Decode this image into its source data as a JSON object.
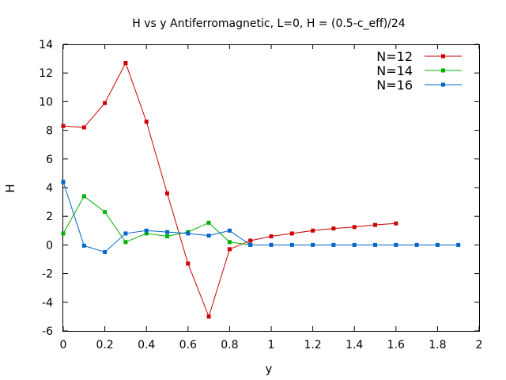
{
  "chart_data": {
    "type": "line",
    "title": "H vs y Antiferromagnetic, L=0, H = (0.5-c_eff)/24",
    "xlabel": "y",
    "ylabel": "H",
    "xlim": [
      0,
      2
    ],
    "ylim": [
      -6,
      14
    ],
    "x_ticks": [
      "0",
      "0.2",
      "0.4",
      "0.6",
      "0.8",
      "1",
      "1.2",
      "1.4",
      "1.6",
      "1.8",
      "2"
    ],
    "y_ticks": [
      "-6",
      "-4",
      "-2",
      "0",
      "2",
      "4",
      "6",
      "8",
      "10",
      "12",
      "14"
    ],
    "grid": false,
    "legend_position": "top-right",
    "series": [
      {
        "name": "N=12",
        "color": "#cc0000",
        "x": [
          0,
          0.1,
          0.2,
          0.3,
          0.4,
          0.5,
          0.6,
          0.7,
          0.8,
          0.9,
          1.0,
          1.1,
          1.2,
          1.3,
          1.4,
          1.5,
          1.6
        ],
        "y": [
          8.3,
          8.2,
          9.9,
          12.7,
          8.6,
          3.6,
          -1.3,
          -5.0,
          -0.3,
          0.3,
          0.6,
          0.8,
          1.0,
          1.15,
          1.25,
          1.4,
          1.5
        ]
      },
      {
        "name": "N=14",
        "color": "#00b000",
        "x": [
          0,
          0.1,
          0.2,
          0.3,
          0.4,
          0.5,
          0.6,
          0.7,
          0.8,
          0.9
        ],
        "y": [
          0.8,
          3.4,
          2.3,
          0.2,
          0.8,
          0.6,
          0.9,
          1.55,
          0.2,
          0.0
        ]
      },
      {
        "name": "N=16",
        "color": "#0066cc",
        "x": [
          0,
          0.1,
          0.2,
          0.3,
          0.4,
          0.5,
          0.6,
          0.7,
          0.8,
          0.9,
          1.0,
          1.1,
          1.2,
          1.3,
          1.4,
          1.5,
          1.6,
          1.7,
          1.8,
          1.9
        ],
        "y": [
          4.4,
          -0.05,
          -0.5,
          0.8,
          1.0,
          0.9,
          0.8,
          0.65,
          1.0,
          0.0,
          0.0,
          0.0,
          0.0,
          0.0,
          0.0,
          0.0,
          0.0,
          0.0,
          0.0,
          0.0
        ]
      }
    ]
  }
}
